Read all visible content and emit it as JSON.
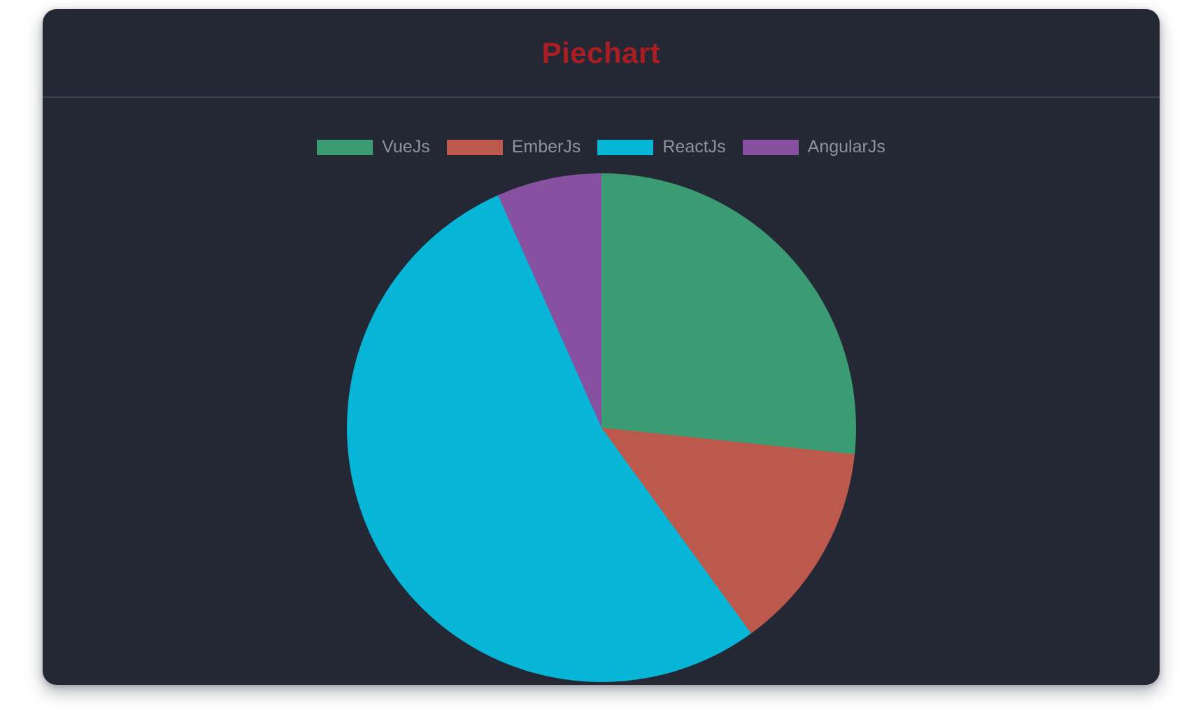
{
  "page": {
    "background": "#ffffff"
  },
  "card": {
    "background": "#232834",
    "divider_color": "#3a4254"
  },
  "header": {
    "title": "Piechart",
    "title_color": "#a91e23"
  },
  "legend": {
    "text_color": "#8d929a",
    "position": "top"
  },
  "chart_data": {
    "type": "pie",
    "title": "Piechart",
    "categories": [
      "VueJs",
      "EmberJs",
      "ReactJs",
      "AngularJs"
    ],
    "values": [
      40,
      20,
      80,
      10
    ],
    "percentages": [
      26.7,
      13.3,
      53.3,
      6.7
    ],
    "colors": [
      "#3b9b73",
      "#bd584c",
      "#07b5d7",
      "#8750a0"
    ],
    "start_angle_deg": 0,
    "direction": "clockwise",
    "legend_position": "top",
    "labels_shown_on_slices": false
  }
}
